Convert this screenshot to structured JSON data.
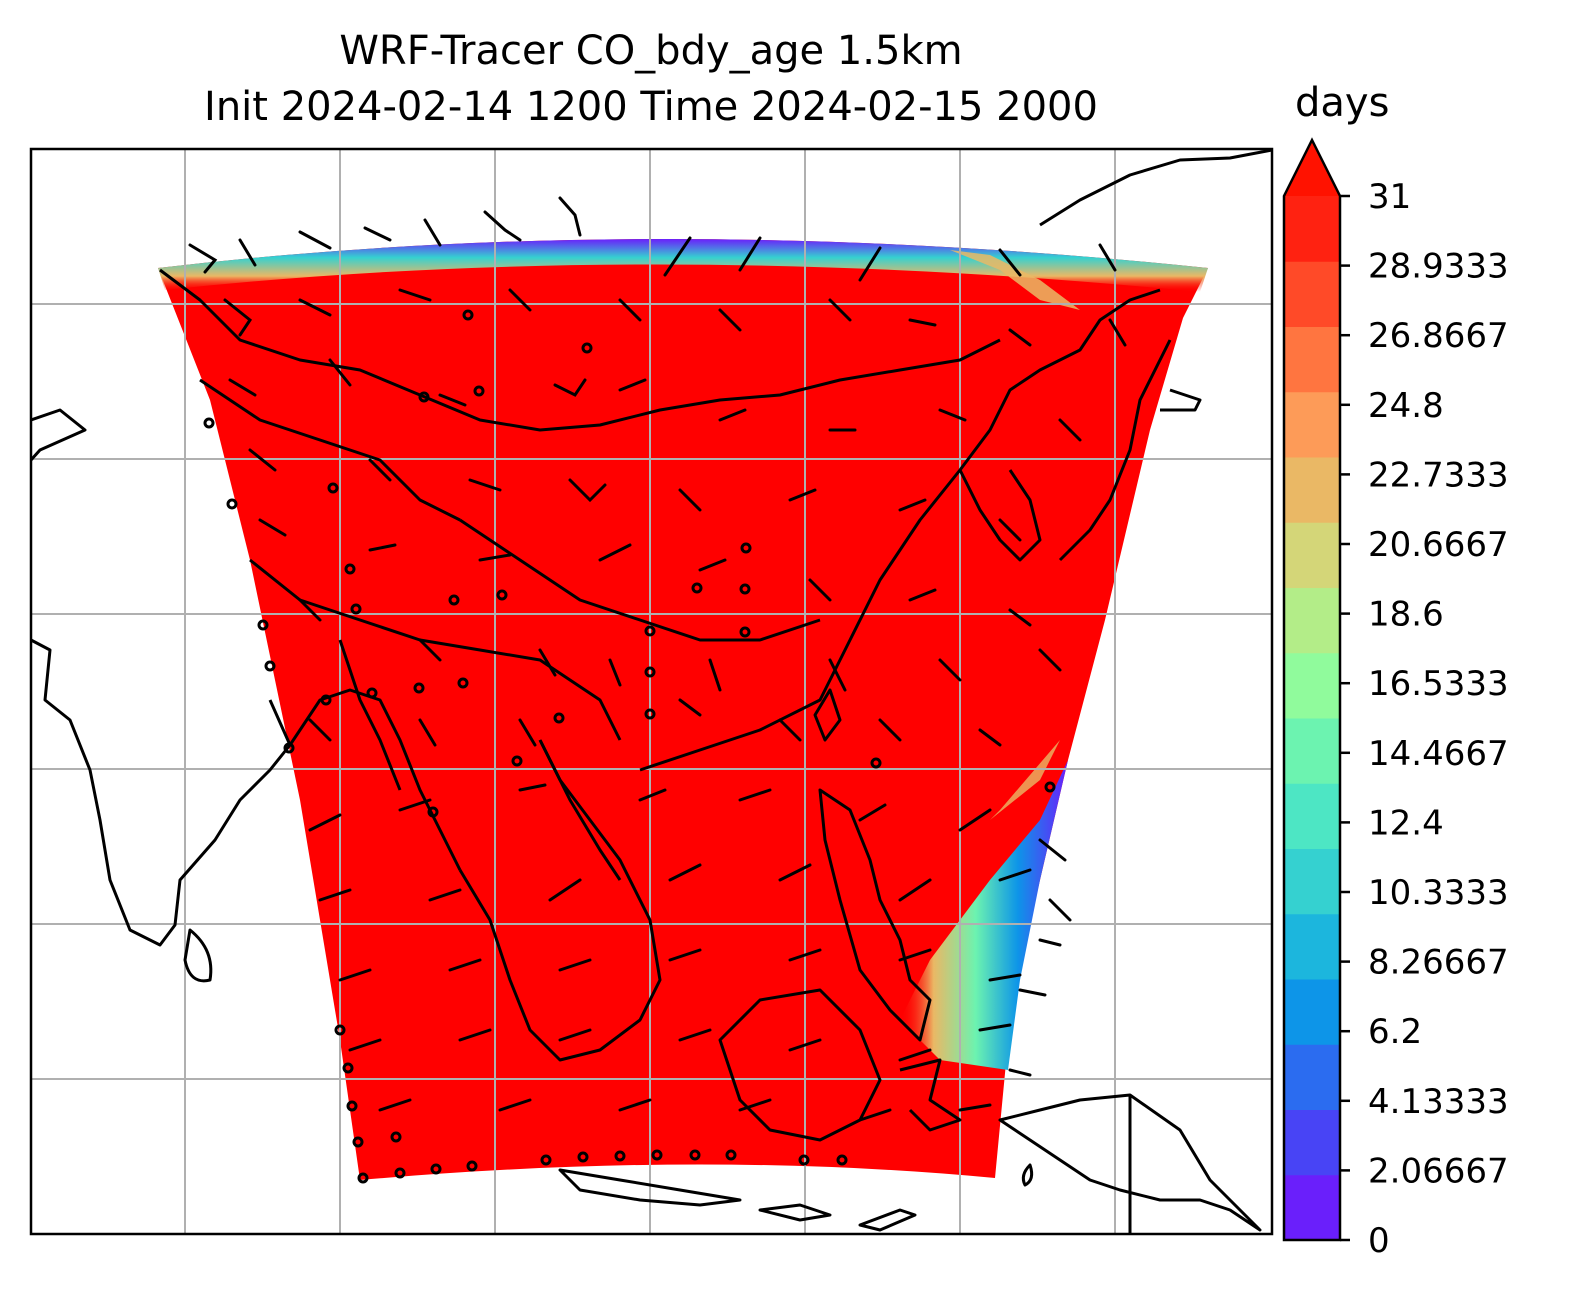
{
  "title": {
    "line1": "WRF-Tracer CO_bdy_age 1.5km",
    "line2": "Init 2024-02-14 1200 Time 2024-02-15 2000"
  },
  "colorbar": {
    "label": "days",
    "min": 0,
    "max": 31,
    "extend": "max",
    "tick_labels": [
      "0",
      "2.06667",
      "4.13333",
      "6.2",
      "8.26667",
      "10.3333",
      "12.4",
      "14.4667",
      "16.5333",
      "18.6",
      "20.6667",
      "22.7333",
      "24.8",
      "26.8667",
      "28.9333",
      "31"
    ],
    "colors": [
      "#6a1ffb",
      "#4844f5",
      "#2b6cf0",
      "#0d95e8",
      "#1cb6dd",
      "#35d1d0",
      "#4de6c4",
      "#6cf3b0",
      "#90fb9c",
      "#b3ed88",
      "#d4d678",
      "#eab865",
      "#fd9b58",
      "#ff7540",
      "#ff4a28",
      "#ff2211"
    ],
    "extend_color": "#ff1200"
  },
  "map": {
    "field_color": "#ff0000",
    "gridlines": true,
    "coastlines": true,
    "wind_barbs": true
  }
}
